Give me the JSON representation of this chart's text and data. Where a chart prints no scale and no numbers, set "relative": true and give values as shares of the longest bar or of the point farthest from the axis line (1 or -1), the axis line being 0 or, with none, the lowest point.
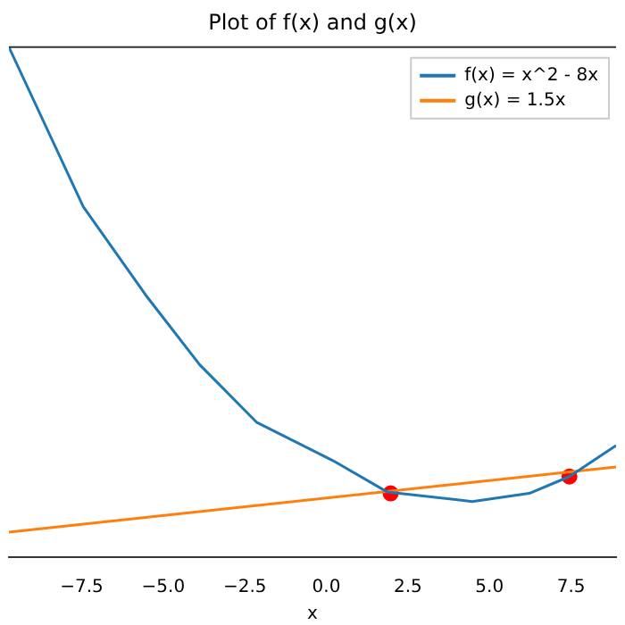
{
  "chart_data": {
    "type": "line",
    "title": "Plot of f(x) and g(x)",
    "xlabel": "x",
    "relative": true,
    "grid": false,
    "legend": "top right",
    "xlim": [
      -9.73,
      8.88
    ],
    "xticks": [
      {
        "value": -7.5,
        "label": "−7.5"
      },
      {
        "value": -5,
        "label": "−5.0"
      },
      {
        "value": -2.5,
        "label": "−2.5"
      },
      {
        "value": 0,
        "label": "0.0"
      },
      {
        "value": 2.5,
        "label": "2.5"
      },
      {
        "value": 5,
        "label": "5.0"
      },
      {
        "value": 7.5,
        "label": "7.5"
      }
    ],
    "series": [
      {
        "name": "f(x) = x^2 - 8x",
        "type": "line",
        "color": "#1f77b4",
        "marker": "none",
        "x": [
          -9.73,
          -7.45,
          -5.48,
          -3.88,
          -2.13,
          0.21,
          1.86,
          4.47,
          6.22,
          7.45,
          8.88
        ],
        "values": [
          1.0,
          0.687,
          0.509,
          0.377,
          0.264,
          0.189,
          0.128,
          0.109,
          0.125,
          0.158,
          0.219
        ]
      },
      {
        "name": "g(x) = 1.5x",
        "type": "line",
        "color": "#ff7f0e",
        "marker": "none",
        "x": [
          -9.73,
          8.88
        ],
        "values": [
          0.049,
          0.177
        ]
      },
      {
        "type": "scatter",
        "color": "#ff0000",
        "marker": "circle",
        "x": [
          1.97,
          7.45
        ],
        "values": [
          0.125,
          0.158
        ]
      }
    ]
  }
}
